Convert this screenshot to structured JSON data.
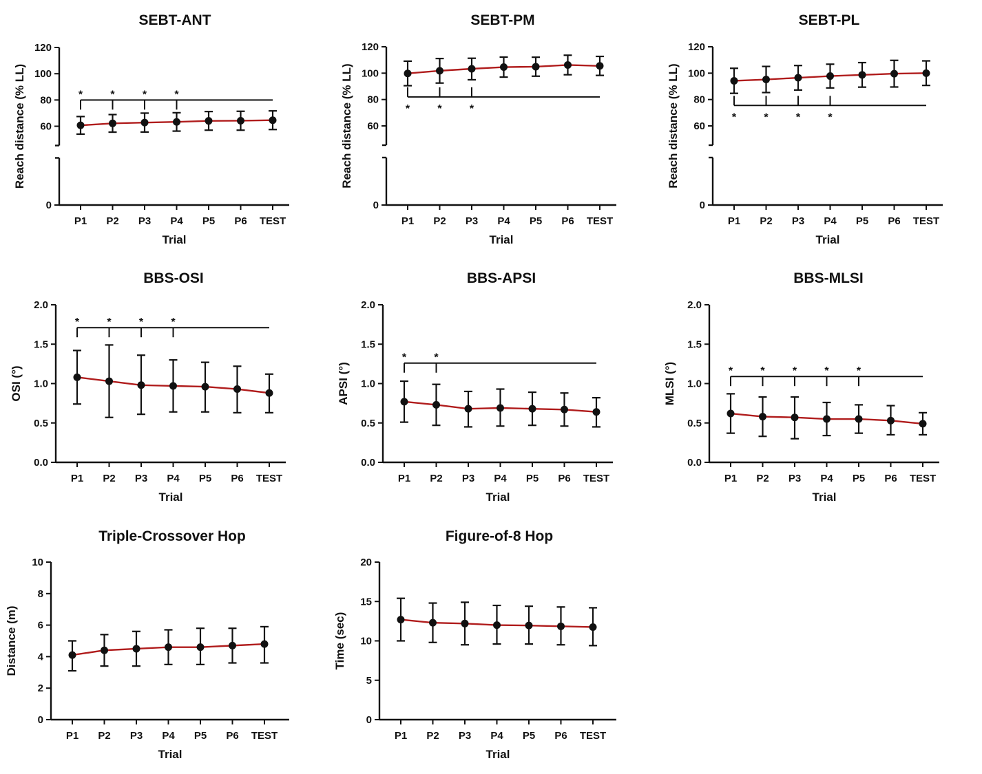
{
  "colors": {
    "line": "#b01c1c",
    "marker": "#111111",
    "axis": "#111111"
  },
  "chart_data": [
    {
      "type": "line",
      "title": "SEBT-ANT",
      "xlabel": "Trial",
      "ylabel": "Reach distance (% LL)",
      "categories": [
        "P1",
        "P2",
        "P3",
        "P4",
        "P5",
        "P6",
        "TEST"
      ],
      "values": [
        60.7,
        62.2,
        62.8,
        63.3,
        64.1,
        64.2,
        64.6
      ],
      "lower": [
        54.0,
        55.5,
        55.6,
        56.3,
        57.0,
        57.0,
        57.5
      ],
      "upper": [
        67.4,
        68.9,
        70.0,
        70.3,
        71.2,
        71.4,
        71.7
      ],
      "ylim": [
        0,
        120
      ],
      "yticks": [
        0,
        60,
        80,
        100,
        120
      ],
      "ytick_labels": [
        "0",
        "60",
        "80",
        "100",
        "120"
      ],
      "axis_break": true,
      "significance": {
        "y": 80,
        "from": "P1",
        "to": "TEST",
        "marked": [
          "P1",
          "P2",
          "P3",
          "P4"
        ],
        "star": "*",
        "position": "above"
      }
    },
    {
      "type": "line",
      "title": "SEBT-PM",
      "xlabel": "Trial",
      "ylabel": "Reach distance (% LL)",
      "categories": [
        "P1",
        "P2",
        "P3",
        "P4",
        "P5",
        "P6",
        "TEST"
      ],
      "values": [
        99.8,
        101.8,
        103.3,
        104.6,
        104.9,
        106.2,
        105.5
      ],
      "lower": [
        90.5,
        92.5,
        95.0,
        97.0,
        97.7,
        98.8,
        98.3
      ],
      "upper": [
        109.1,
        111.1,
        111.3,
        112.2,
        112.1,
        113.6,
        112.7
      ],
      "ylim": [
        0,
        120
      ],
      "yticks": [
        0,
        60,
        80,
        100,
        120
      ],
      "ytick_labels": [
        "0",
        "60",
        "80",
        "100",
        "120"
      ],
      "axis_break": true,
      "significance": {
        "y": 82,
        "from": "P1",
        "to": "TEST",
        "marked": [
          "P1",
          "P2",
          "P3"
        ],
        "star": "*",
        "position": "below"
      }
    },
    {
      "type": "line",
      "title": "SEBT-PL",
      "xlabel": "Trial",
      "ylabel": "Reach distance (% LL)",
      "categories": [
        "P1",
        "P2",
        "P3",
        "P4",
        "P5",
        "P6",
        "TEST"
      ],
      "values": [
        94.2,
        95.2,
        96.5,
        97.8,
        98.7,
        99.6,
        100.0
      ],
      "lower": [
        84.7,
        85.3,
        87.2,
        88.8,
        89.4,
        89.5,
        90.7
      ],
      "upper": [
        103.7,
        105.1,
        105.8,
        106.8,
        108.0,
        109.7,
        109.3
      ],
      "ylim": [
        0,
        120
      ],
      "yticks": [
        0,
        60,
        80,
        100,
        120
      ],
      "ytick_labels": [
        "0",
        "60",
        "80",
        "100",
        "120"
      ],
      "axis_break": true,
      "significance": {
        "y": 75.5,
        "from": "P1",
        "to": "TEST",
        "marked": [
          "P1",
          "P2",
          "P3",
          "P4"
        ],
        "star": "*",
        "position": "below"
      }
    },
    {
      "type": "line",
      "title": "BBS-OSI",
      "xlabel": "Trial",
      "ylabel": "OSI (°)",
      "categories": [
        "P1",
        "P2",
        "P3",
        "P4",
        "P5",
        "P6",
        "TEST"
      ],
      "values": [
        1.08,
        1.03,
        0.98,
        0.97,
        0.96,
        0.93,
        0.88
      ],
      "lower": [
        0.74,
        0.57,
        0.61,
        0.64,
        0.64,
        0.63,
        0.63
      ],
      "upper": [
        1.42,
        1.49,
        1.36,
        1.3,
        1.27,
        1.22,
        1.12
      ],
      "ylim": [
        0,
        2
      ],
      "yticks": [
        0,
        0.5,
        1,
        1.5,
        2
      ],
      "ytick_labels": [
        "0.0",
        "0.5",
        "1.0",
        "1.5",
        "2.0"
      ],
      "axis_break": false,
      "significance": {
        "y": 1.71,
        "from": "P1",
        "to": "TEST",
        "marked": [
          "P1",
          "P2",
          "P3",
          "P4"
        ],
        "star": "*",
        "position": "above"
      }
    },
    {
      "type": "line",
      "title": "BBS-APSI",
      "xlabel": "Trial",
      "ylabel": "APSI (°)",
      "categories": [
        "P1",
        "P2",
        "P3",
        "P4",
        "P5",
        "P6",
        "TEST"
      ],
      "values": [
        0.77,
        0.73,
        0.68,
        0.69,
        0.68,
        0.67,
        0.64
      ],
      "lower": [
        0.51,
        0.47,
        0.45,
        0.46,
        0.47,
        0.46,
        0.45
      ],
      "upper": [
        1.03,
        0.99,
        0.9,
        0.93,
        0.89,
        0.88,
        0.82
      ],
      "ylim": [
        0,
        2
      ],
      "yticks": [
        0,
        0.5,
        1,
        1.5,
        2
      ],
      "ytick_labels": [
        "0.0",
        "0.5",
        "1.0",
        "1.5",
        "2.0"
      ],
      "axis_break": false,
      "significance": {
        "y": 1.26,
        "from": "P1",
        "to": "TEST",
        "marked": [
          "P1",
          "P2"
        ],
        "star": "*",
        "position": "above"
      }
    },
    {
      "type": "line",
      "title": "BBS-MLSI",
      "xlabel": "Trial",
      "ylabel": "MLSI (°)",
      "categories": [
        "P1",
        "P2",
        "P3",
        "P4",
        "P5",
        "P6",
        "TEST"
      ],
      "values": [
        0.62,
        0.58,
        0.57,
        0.55,
        0.55,
        0.53,
        0.49
      ],
      "lower": [
        0.37,
        0.33,
        0.3,
        0.34,
        0.37,
        0.35,
        0.35
      ],
      "upper": [
        0.87,
        0.83,
        0.83,
        0.76,
        0.73,
        0.72,
        0.63
      ],
      "ylim": [
        0,
        2
      ],
      "yticks": [
        0,
        0.5,
        1,
        1.5,
        2
      ],
      "ytick_labels": [
        "0.0",
        "0.5",
        "1.0",
        "1.5",
        "2.0"
      ],
      "axis_break": false,
      "significance": {
        "y": 1.09,
        "from": "P1",
        "to": "TEST",
        "marked": [
          "P1",
          "P2",
          "P3",
          "P4",
          "P5"
        ],
        "star": "*",
        "position": "above"
      }
    },
    {
      "type": "line",
      "title": "Triple-Crossover Hop",
      "xlabel": "Trial",
      "ylabel": "Distance (m)",
      "categories": [
        "P1",
        "P2",
        "P3",
        "P4",
        "P5",
        "P6",
        "TEST"
      ],
      "values": [
        4.1,
        4.4,
        4.5,
        4.6,
        4.6,
        4.7,
        4.8
      ],
      "lower": [
        3.1,
        3.4,
        3.4,
        3.5,
        3.5,
        3.6,
        3.6
      ],
      "upper": [
        5.0,
        5.4,
        5.6,
        5.7,
        5.8,
        5.8,
        5.9
      ],
      "ylim": [
        0,
        10
      ],
      "yticks": [
        0,
        2,
        4,
        6,
        8,
        10
      ],
      "ytick_labels": [
        "0",
        "2",
        "4",
        "6",
        "8",
        "10"
      ],
      "axis_break": false,
      "significance": null
    },
    {
      "type": "line",
      "title": "Figure-of-8 Hop",
      "xlabel": "Trial",
      "ylabel": "Time (sec)",
      "categories": [
        "P1",
        "P2",
        "P3",
        "P4",
        "P5",
        "P6",
        "TEST"
      ],
      "values": [
        12.7,
        12.3,
        12.2,
        12.0,
        11.95,
        11.85,
        11.75
      ],
      "lower": [
        10.0,
        9.8,
        9.5,
        9.6,
        9.6,
        9.5,
        9.4
      ],
      "upper": [
        15.4,
        14.8,
        14.9,
        14.5,
        14.4,
        14.3,
        14.2
      ],
      "ylim": [
        0,
        20
      ],
      "yticks": [
        0,
        5,
        10,
        15,
        20
      ],
      "ytick_labels": [
        "0",
        "5",
        "10",
        "15",
        "20"
      ],
      "axis_break": false,
      "significance": null
    }
  ]
}
